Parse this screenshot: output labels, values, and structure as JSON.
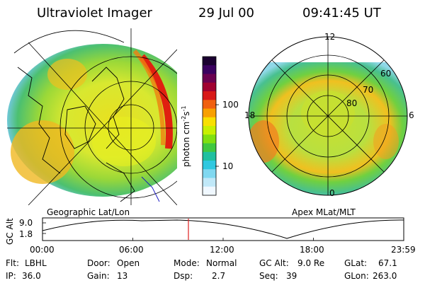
{
  "header": {
    "instrument": "Ultraviolet Imager",
    "date": "29 Jul 00",
    "time": "09:41:45 UT"
  },
  "colorbar": {
    "unit_label": "photon cm-2s-1",
    "ticks": [
      "100",
      "10"
    ],
    "colors": [
      "#1a0030",
      "#3a0060",
      "#6a0050",
      "#a00030",
      "#d81818",
      "#f06010",
      "#f8a000",
      "#f8e000",
      "#c8f000",
      "#80e010",
      "#40c840",
      "#20c0a0",
      "#30c8e0",
      "#80d8f0",
      "#c0e8f8",
      "#f0f8ff"
    ]
  },
  "panels": {
    "left_label": "Geographic Lat/Lon",
    "right_label": "Apex MLat/MLT"
  },
  "polar_grid": {
    "mlt_labels": [
      "12",
      "18",
      "6",
      "0"
    ],
    "mlat_labels": [
      "60",
      "70",
      "80"
    ]
  },
  "timeline": {
    "ylabel": "GC Alt",
    "yticks": [
      "9.0",
      "1.8"
    ],
    "xticks": [
      "00:00",
      "06:00",
      "12:00",
      "18:00",
      "23:59"
    ],
    "marker_time": "09:41",
    "marker_fraction": 0.404
  },
  "info": {
    "filter_label": "Flt:",
    "filter_value": "LBHL",
    "ip_label": "IP:",
    "ip_value": "36.0",
    "door_label": "Door:",
    "door_value": "Open",
    "gain_label": "Gain:",
    "gain_value": "13",
    "mode_label": "Mode:",
    "mode_value": "Normal",
    "dsp_label": "Dsp:",
    "dsp_value": "2.7",
    "gcalt_label": "GC Alt:",
    "gcalt_value": "9.0 Re",
    "seq_label": "Seq:",
    "seq_value": "39",
    "glat_label": "GLat:",
    "glat_value": "67.1",
    "glon_label": "GLon:",
    "glon_value": "263.0"
  }
}
